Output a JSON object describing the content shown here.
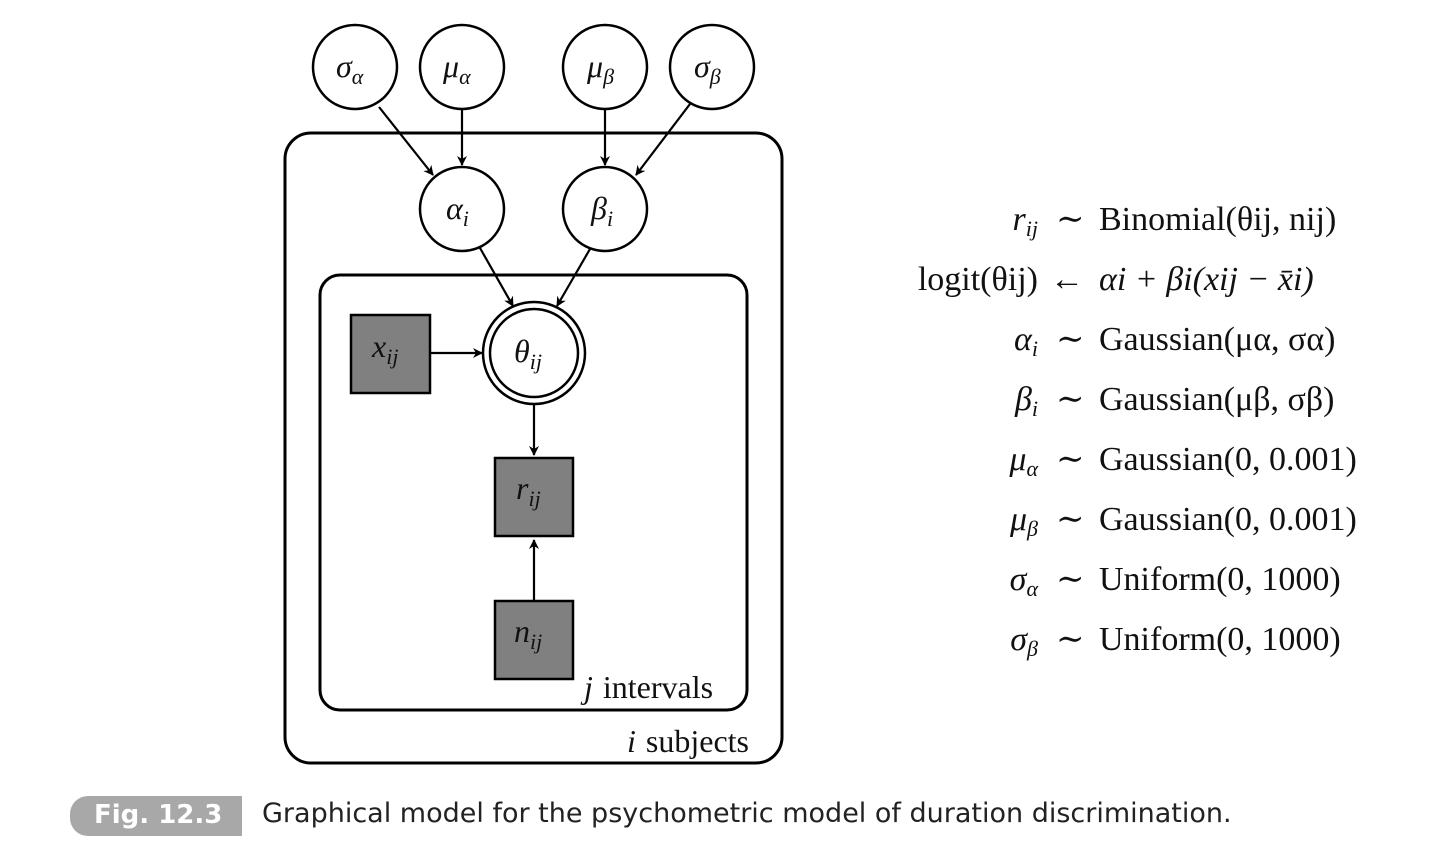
{
  "nodes": {
    "sigma_alpha": {
      "sym": "σ",
      "sub": "α"
    },
    "mu_alpha": {
      "sym": "μ",
      "sub": "α"
    },
    "mu_beta": {
      "sym": "μ",
      "sub": "β"
    },
    "sigma_beta": {
      "sym": "σ",
      "sub": "β"
    },
    "alpha_i": {
      "sym": "α",
      "sub": "i"
    },
    "beta_i": {
      "sym": "β",
      "sub": "i"
    },
    "theta_ij": {
      "sym": "θ",
      "sub": "ij"
    },
    "x_ij": {
      "sym": "x",
      "sub": "ij"
    },
    "r_ij": {
      "sym": "r",
      "sub": "ij"
    },
    "n_ij": {
      "sym": "n",
      "sub": "ij"
    }
  },
  "plates": {
    "inner_label_var": "j",
    "inner_label_text": "intervals",
    "outer_label_var": "i",
    "outer_label_text": "subjects"
  },
  "equations": [
    {
      "lhs": "r",
      "lhs_sub": "ij",
      "op": "∼",
      "rhs": "Binomial(θij, nij)"
    },
    {
      "lhs": "logit(θij)",
      "lhs_sub": "",
      "op": "←",
      "rhs": "αi + βi(xij − x̄i)"
    },
    {
      "lhs": "α",
      "lhs_sub": "i",
      "op": "∼",
      "rhs": "Gaussian(μα, σα)"
    },
    {
      "lhs": "β",
      "lhs_sub": "i",
      "op": "∼",
      "rhs": "Gaussian(μβ, σβ)"
    },
    {
      "lhs": "μ",
      "lhs_sub": "α",
      "op": "∼",
      "rhs": "Gaussian(0, 0.001)"
    },
    {
      "lhs": "μ",
      "lhs_sub": "β",
      "op": "∼",
      "rhs": "Gaussian(0, 0.001)"
    },
    {
      "lhs": "σ",
      "lhs_sub": "α",
      "op": "∼",
      "rhs": "Uniform(0, 1000)"
    },
    {
      "lhs": "σ",
      "lhs_sub": "β",
      "op": "∼",
      "rhs": "Uniform(0, 1000)"
    }
  ],
  "caption": {
    "tag": "Fig. 12.3",
    "text": "Graphical model for the psychometric model of duration discrimination."
  },
  "colors": {
    "observed_node": "#808080",
    "caption_tag_bg": "#a8a8a8"
  }
}
